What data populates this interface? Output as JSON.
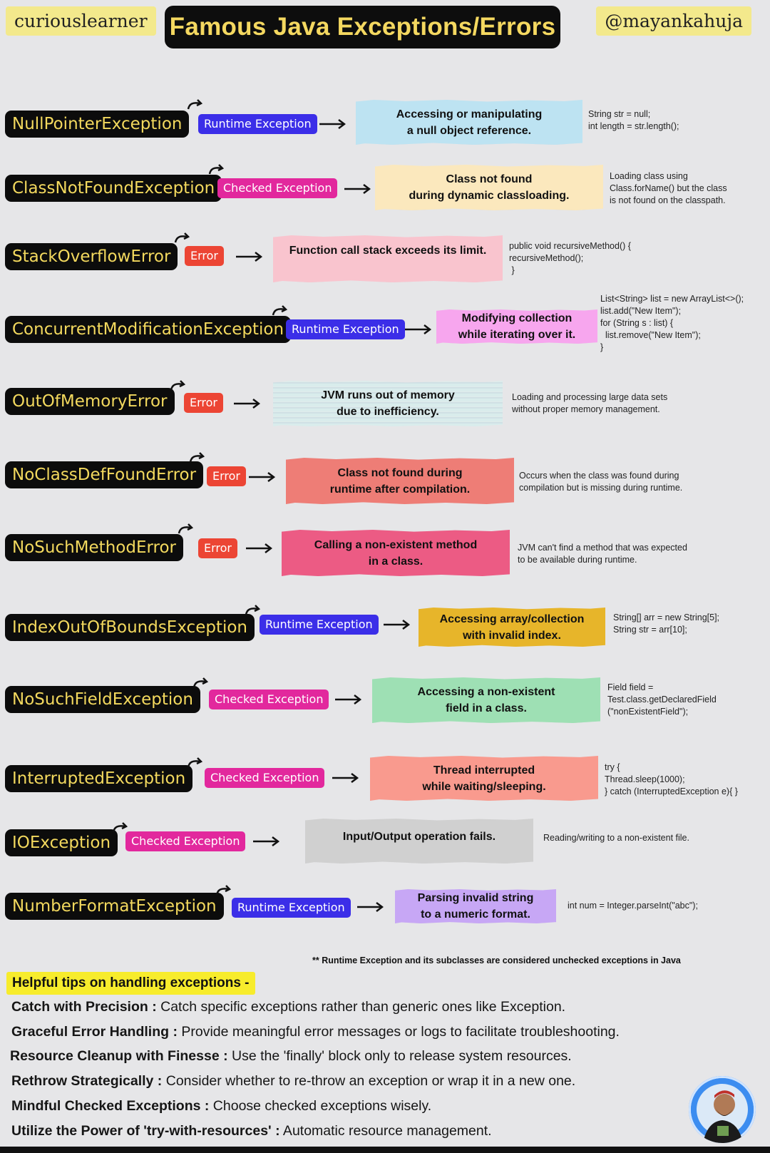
{
  "header": {
    "brand_left": "curiouslearner",
    "title": "Famous Java Exceptions/Errors",
    "brand_right": "@mayankahuja"
  },
  "colors": {
    "runtime_badge": "#3b2ee8",
    "checked_badge": "#e2289d",
    "error_badge": "#ec4534",
    "name_pill_bg": "#0c0c0c",
    "name_pill_text": "#f3d95e"
  },
  "exceptions": [
    {
      "name": "NullPointerException",
      "type": "Runtime Exception",
      "description": "Accessing or manipulating\na null object reference.",
      "example": "String str = null;\nint length = str.length();",
      "card_color": "#bde3f2"
    },
    {
      "name": "ClassNotFoundException",
      "type": "Checked Exception",
      "description": "Class not found\nduring dynamic classloading.",
      "example": "Loading class using\nClass.forName() but the class\nis not found on the classpath.",
      "card_color": "#fbe8bd"
    },
    {
      "name": "StackOverflowError",
      "type": "Error",
      "description": "Function call stack exceeds its limit.",
      "example": "public void recursiveMethod() {\nrecursiveMethod();\n }",
      "card_color": "#f9c4ce"
    },
    {
      "name": "ConcurrentModificationException",
      "type": "Runtime Exception",
      "description": "Modifying collection\nwhile iterating over it.",
      "example": "List<String> list = new ArrayList<>();\nlist.add(\"New Item\");\nfor (String s : list) {\n  list.remove(\"New Item\");\n}",
      "card_color": "#f7a6ee"
    },
    {
      "name": "OutOfMemoryError",
      "type": "Error",
      "description": "JVM runs out of memory\ndue to inefficiency.",
      "example": "Loading and processing large data sets\nwithout proper memory management.",
      "card_color": "#d9ecec"
    },
    {
      "name": "NoClassDefFoundError",
      "type": "Error",
      "description": "Class not found during\nruntime after compilation.",
      "example": "Occurs when the class was found during\ncompilation but is missing during runtime.",
      "card_color": "#ee7d76"
    },
    {
      "name": "NoSuchMethodError",
      "type": "Error",
      "description": "Calling a non-existent method\nin a class.",
      "example": "JVM can't find a method that was expected\nto be available during runtime.",
      "card_color": "#ec5b84"
    },
    {
      "name": "IndexOutOfBoundsException",
      "type": "Runtime Exception",
      "description": "Accessing array/collection\nwith invalid index.",
      "example": "String[] arr = new String[5];\nString str = arr[10];",
      "card_color": "#e7b52a"
    },
    {
      "name": "NoSuchFieldException",
      "type": "Checked Exception",
      "description": "Accessing a non-existent\nfield in a class.",
      "example": "Field field =\nTest.class.getDeclaredField\n(\"nonExistentField\");",
      "card_color": "#9ee0b4"
    },
    {
      "name": "InterruptedException",
      "type": "Checked Exception",
      "description": "Thread interrupted\nwhile waiting/sleeping.",
      "example": "try {\nThread.sleep(1000);\n} catch (InterruptedException e){ }",
      "card_color": "#f99a8e"
    },
    {
      "name": "IOException",
      "type": "Checked Exception",
      "description": "Input/Output operation fails.",
      "example": "Reading/writing to a non-existent file.",
      "card_color": "#d0d0d0"
    },
    {
      "name": "NumberFormatException",
      "type": "Runtime Exception",
      "description": "Parsing invalid string\nto a numeric format.",
      "example": "int num = Integer.parseInt(\"abc\");",
      "card_color": "#c7a7f5"
    }
  ],
  "footnote": "** Runtime Exception and its subclasses are considered unchecked exceptions in Java",
  "tips": {
    "heading": "Helpful tips on handling exceptions -",
    "items": [
      {
        "title": "Catch with Precision :",
        "text": " Catch specific exceptions rather than generic ones like Exception."
      },
      {
        "title": "Graceful Error Handling :",
        "text": " Provide meaningful error messages or logs to facilitate troubleshooting."
      },
      {
        "title": "Resource Cleanup with Finesse :",
        "text": " Use the 'finally' block only to release system resources."
      },
      {
        "title": "Rethrow Strategically :",
        "text": " Consider whether to re-throw an exception or wrap it in a new one."
      },
      {
        "title": "Mindful Checked Exceptions :",
        "text": " Choose checked exceptions wisely."
      },
      {
        "title": "Utilize the Power of 'try-with-resources' :",
        "text": " Automatic resource management."
      }
    ]
  }
}
